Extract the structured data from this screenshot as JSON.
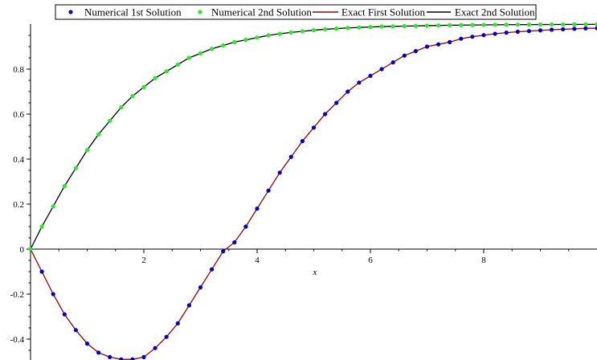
{
  "chart_data": {
    "type": "line",
    "xlabel": "x",
    "ylabel": "",
    "xlim": [
      0,
      10
    ],
    "ylim": [
      -0.5,
      1
    ],
    "x_ticks": [
      2,
      4,
      6,
      8
    ],
    "y_ticks": [
      -0.4,
      -0.2,
      0,
      0.2,
      0.4,
      0.6,
      0.8
    ],
    "x_tick_labels": [
      "2",
      "4",
      "6",
      "8"
    ],
    "y_tick_labels": [
      "-0.4",
      "-0.2",
      "0",
      "0.2",
      "0.4",
      "0.6",
      "0.8"
    ],
    "legend_position": "top",
    "series": [
      {
        "name": "Numerical 1st Solution",
        "style": "points",
        "color": "#0000cc",
        "x": [
          0,
          0.2,
          0.4,
          0.6,
          0.8,
          1.0,
          1.2,
          1.4,
          1.6,
          1.8,
          2.0,
          2.2,
          2.4,
          2.6,
          2.8,
          3.0,
          3.2,
          3.4,
          3.6,
          3.8,
          4.0,
          4.2,
          4.4,
          4.6,
          4.8,
          5.0,
          5.2,
          5.4,
          5.6,
          5.8,
          6.0,
          6.2,
          6.4,
          6.6,
          6.8,
          7.0,
          7.2,
          7.4,
          7.6,
          7.8,
          8.0,
          8.2,
          8.4,
          8.6,
          8.8,
          9.0,
          9.2,
          9.4,
          9.6,
          9.8,
          10.0
        ],
        "y": [
          0,
          -0.1,
          -0.2,
          -0.29,
          -0.36,
          -0.42,
          -0.46,
          -0.48,
          -0.49,
          -0.49,
          -0.48,
          -0.44,
          -0.39,
          -0.33,
          -0.25,
          -0.17,
          -0.09,
          -0.01,
          0.03,
          0.1,
          0.18,
          0.26,
          0.34,
          0.41,
          0.48,
          0.54,
          0.6,
          0.65,
          0.7,
          0.74,
          0.77,
          0.8,
          0.83,
          0.86,
          0.88,
          0.9,
          0.91,
          0.92,
          0.935,
          0.944,
          0.951,
          0.957,
          0.962,
          0.966,
          0.969,
          0.972,
          0.975,
          0.977,
          0.979,
          0.981,
          0.982
        ]
      },
      {
        "name": "Numerical 2nd Solution",
        "style": "points",
        "color": "#22ee22",
        "x": [
          0,
          0.2,
          0.4,
          0.6,
          0.8,
          1.0,
          1.2,
          1.4,
          1.6,
          1.8,
          2.0,
          2.2,
          2.4,
          2.6,
          2.8,
          3.0,
          3.2,
          3.4,
          3.6,
          3.8,
          4.0,
          4.2,
          4.4,
          4.6,
          4.8,
          5.0,
          5.2,
          5.4,
          5.6,
          5.8,
          6.0,
          6.2,
          6.4,
          6.6,
          6.8,
          7.0,
          7.2,
          7.4,
          7.6,
          7.8,
          8.0,
          8.2,
          8.4,
          8.6,
          8.8,
          9.0,
          9.2,
          9.4,
          9.6,
          9.8,
          10.0
        ],
        "y": [
          0,
          0.1,
          0.19,
          0.28,
          0.36,
          0.44,
          0.51,
          0.57,
          0.63,
          0.68,
          0.72,
          0.76,
          0.79,
          0.82,
          0.85,
          0.87,
          0.89,
          0.905,
          0.92,
          0.93,
          0.94,
          0.95,
          0.957,
          0.963,
          0.968,
          0.973,
          0.977,
          0.98,
          0.983,
          0.985,
          0.987,
          0.989,
          0.99,
          0.991,
          0.992,
          0.993,
          0.994,
          0.995,
          0.9955,
          0.996,
          0.9965,
          0.997,
          0.9973,
          0.9976,
          0.9978,
          0.998,
          0.9982,
          0.9984,
          0.9986,
          0.9988,
          0.999
        ]
      },
      {
        "name": "Exact First Solution",
        "style": "line",
        "color": "#990000",
        "x": [
          0,
          0.2,
          0.4,
          0.6,
          0.8,
          1.0,
          1.2,
          1.4,
          1.6,
          1.8,
          2.0,
          2.2,
          2.4,
          2.6,
          2.8,
          3.0,
          3.2,
          3.4,
          3.6,
          3.8,
          4.0,
          4.2,
          4.4,
          4.6,
          4.8,
          5.0,
          5.2,
          5.4,
          5.6,
          5.8,
          6.0,
          6.2,
          6.4,
          6.6,
          6.8,
          7.0,
          7.2,
          7.4,
          7.6,
          7.8,
          8.0,
          8.2,
          8.4,
          8.6,
          8.8,
          9.0,
          9.2,
          9.4,
          9.6,
          9.8,
          10.0
        ],
        "y": [
          0,
          -0.1,
          -0.2,
          -0.29,
          -0.36,
          -0.42,
          -0.46,
          -0.48,
          -0.49,
          -0.49,
          -0.48,
          -0.44,
          -0.39,
          -0.33,
          -0.25,
          -0.17,
          -0.09,
          -0.01,
          0.03,
          0.1,
          0.18,
          0.26,
          0.34,
          0.41,
          0.48,
          0.54,
          0.6,
          0.65,
          0.7,
          0.74,
          0.77,
          0.8,
          0.83,
          0.86,
          0.88,
          0.9,
          0.91,
          0.92,
          0.935,
          0.944,
          0.951,
          0.957,
          0.962,
          0.966,
          0.969,
          0.972,
          0.975,
          0.977,
          0.979,
          0.981,
          0.982
        ]
      },
      {
        "name": "Exact 2nd Solution",
        "style": "line",
        "color": "#000000",
        "x": [
          0,
          0.2,
          0.4,
          0.6,
          0.8,
          1.0,
          1.2,
          1.4,
          1.6,
          1.8,
          2.0,
          2.2,
          2.4,
          2.6,
          2.8,
          3.0,
          3.2,
          3.4,
          3.6,
          3.8,
          4.0,
          4.2,
          4.4,
          4.6,
          4.8,
          5.0,
          5.2,
          5.4,
          5.6,
          5.8,
          6.0,
          6.2,
          6.4,
          6.6,
          6.8,
          7.0,
          7.2,
          7.4,
          7.6,
          7.8,
          8.0,
          8.2,
          8.4,
          8.6,
          8.8,
          9.0,
          9.2,
          9.4,
          9.6,
          9.8,
          10.0
        ],
        "y": [
          0,
          0.1,
          0.19,
          0.28,
          0.36,
          0.44,
          0.51,
          0.57,
          0.63,
          0.68,
          0.72,
          0.76,
          0.79,
          0.82,
          0.85,
          0.87,
          0.89,
          0.905,
          0.92,
          0.93,
          0.94,
          0.95,
          0.957,
          0.963,
          0.968,
          0.973,
          0.977,
          0.98,
          0.983,
          0.985,
          0.987,
          0.989,
          0.99,
          0.991,
          0.992,
          0.993,
          0.994,
          0.995,
          0.9955,
          0.996,
          0.9965,
          0.997,
          0.9973,
          0.9976,
          0.9978,
          0.998,
          0.9982,
          0.9984,
          0.9986,
          0.9988,
          0.999
        ]
      }
    ]
  }
}
